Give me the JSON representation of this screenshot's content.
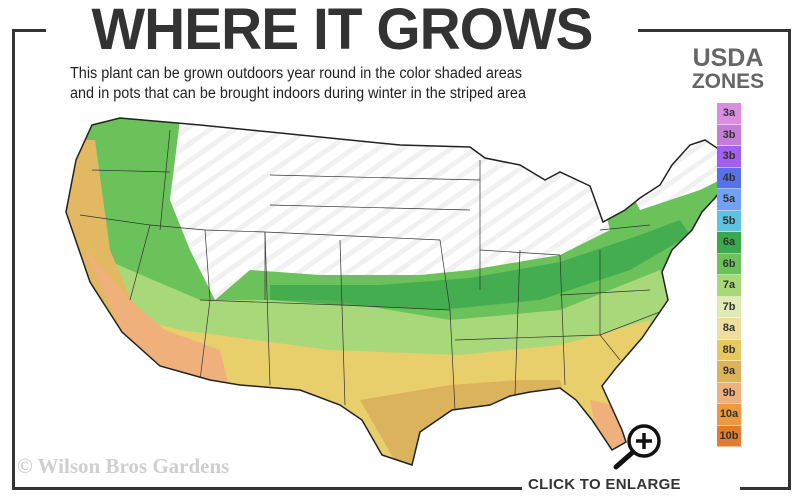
{
  "header": {
    "title": "WHERE IT GROWS",
    "subtitle_line1": "This plant can be grown outdoors year round in the color shaded areas",
    "subtitle_line2": "and in pots that can be brought indoors during winter in the striped area"
  },
  "legend": {
    "title_line1": "USDA",
    "title_line2": "ZONES",
    "zones": [
      {
        "label": "3a",
        "color": "#d98ee0"
      },
      {
        "label": "3b",
        "color": "#c57ed8"
      },
      {
        "label": "3b",
        "color": "#a35ff0"
      },
      {
        "label": "4b",
        "color": "#5a70e8"
      },
      {
        "label": "5a",
        "color": "#70a2f5"
      },
      {
        "label": "5b",
        "color": "#5cc3e0"
      },
      {
        "label": "6a",
        "color": "#3ba84c"
      },
      {
        "label": "6b",
        "color": "#6cc25a"
      },
      {
        "label": "7a",
        "color": "#a8d87a"
      },
      {
        "label": "7b",
        "color": "#e0ebb3"
      },
      {
        "label": "8a",
        "color": "#eedd9c"
      },
      {
        "label": "8b",
        "color": "#e8c85c"
      },
      {
        "label": "9a",
        "color": "#dbb35c"
      },
      {
        "label": "9b",
        "color": "#f0b07c"
      },
      {
        "label": "10a",
        "color": "#ec9a40"
      },
      {
        "label": "10b",
        "color": "#e07d2e"
      }
    ]
  },
  "footer": {
    "watermark": "© Wilson Bros Gardens",
    "enlarge_label": "CLICK TO ENLARGE"
  }
}
